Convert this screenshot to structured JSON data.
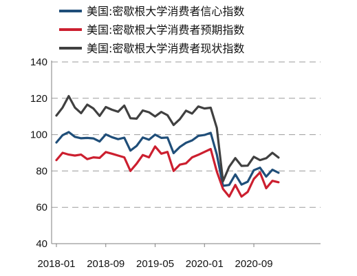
{
  "chart_data": {
    "type": "line",
    "title": "",
    "xlabel": "",
    "ylabel": "",
    "ylim": [
      40,
      140
    ],
    "yticks": [
      40,
      60,
      80,
      100,
      120,
      140
    ],
    "xticks": [
      "2018-01",
      "2018-09",
      "2019-05",
      "2020-01",
      "2020-09"
    ],
    "grid": "horizontal dashed",
    "legend_position": "top",
    "x": [
      "2018-01",
      "2018-02",
      "2018-03",
      "2018-04",
      "2018-05",
      "2018-06",
      "2018-07",
      "2018-08",
      "2018-09",
      "2018-10",
      "2018-11",
      "2018-12",
      "2019-01",
      "2019-02",
      "2019-03",
      "2019-04",
      "2019-05",
      "2019-06",
      "2019-07",
      "2019-08",
      "2019-09",
      "2019-10",
      "2019-11",
      "2019-12",
      "2020-01",
      "2020-02",
      "2020-03",
      "2020-04",
      "2020-05",
      "2020-06",
      "2020-07",
      "2020-08",
      "2020-09",
      "2020-10",
      "2020-11",
      "2020-12",
      "2021-01"
    ],
    "series": [
      {
        "name": "美国:密歇根大学消费者信心指数",
        "color": "#1f4e79",
        "values": [
          95.7,
          99.7,
          101.4,
          98.8,
          98.0,
          98.2,
          97.9,
          96.2,
          100.1,
          98.6,
          97.5,
          98.3,
          91.2,
          93.8,
          98.4,
          97.2,
          100.0,
          98.2,
          98.4,
          89.8,
          93.2,
          95.5,
          96.8,
          99.3,
          99.8,
          101.0,
          89.1,
          71.8,
          72.3,
          78.1,
          72.5,
          74.1,
          80.4,
          81.8,
          76.9,
          80.7,
          79.0
        ]
      },
      {
        "name": "美国:密歇根大学消费者预期指数",
        "color": "#cc1f2f",
        "values": [
          86.0,
          90.0,
          89.0,
          88.5,
          89.0,
          86.5,
          87.5,
          87.2,
          90.4,
          89.5,
          88.5,
          87.5,
          80.0,
          84.0,
          88.8,
          87.5,
          93.5,
          89.5,
          90.5,
          80.0,
          83.5,
          84.2,
          87.5,
          88.9,
          90.5,
          92.1,
          79.7,
          70.1,
          65.9,
          72.3,
          65.9,
          68.5,
          75.6,
          79.2,
          70.5,
          74.6,
          73.8
        ]
      },
      {
        "name": "美国:密歇根大学消费者现状指数",
        "color": "#404040",
        "values": [
          110.5,
          114.9,
          121.2,
          114.9,
          111.8,
          116.5,
          114.4,
          110.3,
          115.2,
          113.7,
          112.6,
          116.0,
          109.0,
          108.8,
          113.3,
          112.3,
          110.0,
          112.5,
          110.7,
          105.3,
          108.5,
          113.2,
          111.6,
          115.5,
          114.4,
          114.8,
          103.7,
          74.3,
          82.3,
          87.1,
          82.8,
          82.9,
          87.8,
          86.0,
          87.0,
          90.0,
          87.4
        ]
      }
    ]
  }
}
